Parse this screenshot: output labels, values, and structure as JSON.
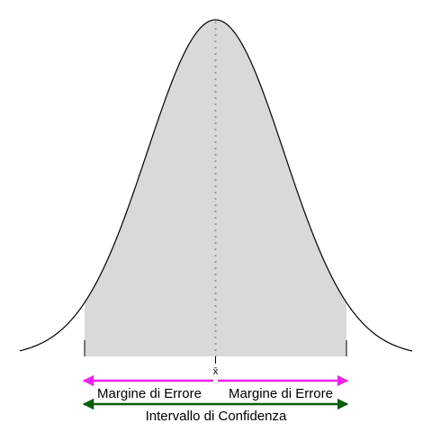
{
  "labels": {
    "mean": "x̄",
    "margin_left": "Margine di Errore",
    "margin_right": "Margine di Errore",
    "interval": "Intervallo di Confidenza"
  },
  "colors": {
    "curve": "#000000",
    "fill": "#d9d9d9",
    "mean_line": "#999999",
    "margin_arrow": "#ee22ee",
    "interval_arrow": "#0b5c0b"
  }
}
